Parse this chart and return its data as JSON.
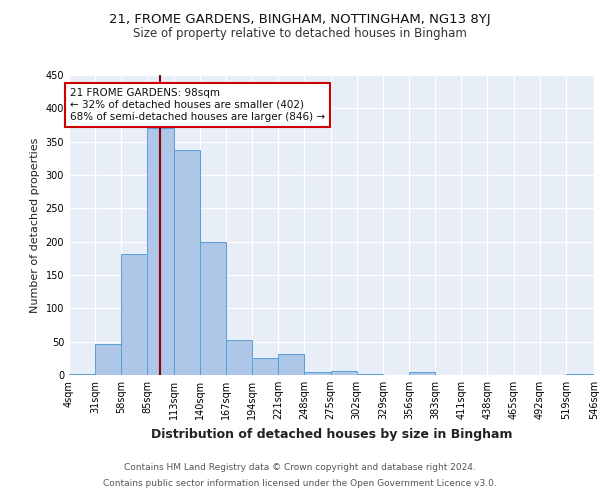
{
  "title1": "21, FROME GARDENS, BINGHAM, NOTTINGHAM, NG13 8YJ",
  "title2": "Size of property relative to detached houses in Bingham",
  "xlabel": "Distribution of detached houses by size in Bingham",
  "ylabel": "Number of detached properties",
  "footnote1": "Contains HM Land Registry data © Crown copyright and database right 2024.",
  "footnote2": "Contains public sector information licensed under the Open Government Licence v3.0.",
  "annotation_line1": "21 FROME GARDENS: 98sqm",
  "annotation_line2": "← 32% of detached houses are smaller (402)",
  "annotation_line3": "68% of semi-detached houses are larger (846) →",
  "property_size": 98,
  "bin_edges": [
    4,
    31,
    58,
    85,
    112,
    139,
    166,
    193,
    220,
    247,
    274,
    301,
    328,
    355,
    382,
    409,
    436,
    463,
    490,
    517,
    546
  ],
  "bin_labels": [
    "4sqm",
    "31sqm",
    "58sqm",
    "85sqm",
    "113sqm",
    "140sqm",
    "167sqm",
    "194sqm",
    "221sqm",
    "248sqm",
    "275sqm",
    "302sqm",
    "329sqm",
    "356sqm",
    "383sqm",
    "411sqm",
    "438sqm",
    "465sqm",
    "492sqm",
    "519sqm",
    "546sqm"
  ],
  "counts": [
    2,
    47,
    181,
    370,
    338,
    199,
    53,
    25,
    31,
    5,
    6,
    2,
    0,
    4,
    0,
    0,
    0,
    0,
    0,
    2
  ],
  "bar_color": "#aec6e8",
  "bar_edge_color": "#5a9fd4",
  "vline_color": "#8b0000",
  "vline_x": 98,
  "annotation_box_color": "#ffffff",
  "annotation_box_edge": "#cc0000",
  "ylim": [
    0,
    450
  ],
  "yticks": [
    0,
    50,
    100,
    150,
    200,
    250,
    300,
    350,
    400,
    450
  ],
  "background_color": "#e8eef8",
  "fig_bg": "#ffffff",
  "title1_fontsize": 9.5,
  "title2_fontsize": 8.5,
  "ylabel_fontsize": 8,
  "xlabel_fontsize": 9,
  "tick_fontsize": 7,
  "ann_fontsize": 7.5,
  "footnote_fontsize": 6.5
}
